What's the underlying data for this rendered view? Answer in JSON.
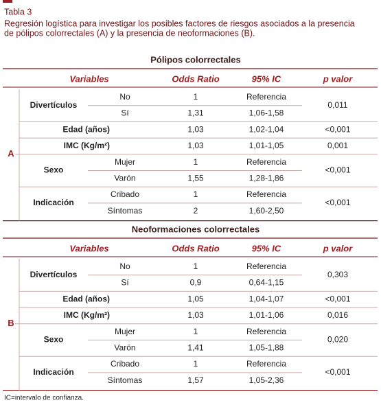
{
  "label": "Tabla 3",
  "caption_lines": [
    "Regresión logística para investigar los posibles factores de riesgos asociados a la presencia",
    "de pólipos colorrectales (A) y la presencia de neoformaciones (B)."
  ],
  "sections": [
    {
      "letter": "A",
      "title": "Pólipos colorrectales",
      "headers": [
        "Variables",
        "Odds Ratio",
        "95% IC",
        "p valor"
      ],
      "groups": [
        {
          "variable": "Divertículos",
          "rows": [
            {
              "level": "No",
              "or": "1",
              "ic": "Referencia"
            },
            {
              "level": "Sí",
              "or": "1,31",
              "ic": "1,06-1,58"
            }
          ],
          "p": "0,011"
        },
        {
          "variable": "Edad (años)",
          "rows": [
            {
              "or": "1,03",
              "ic": "1,02-1,04"
            }
          ],
          "p": "<0,001"
        },
        {
          "variable": "IMC (Kg/m²)",
          "rows": [
            {
              "or": "1,03",
              "ic": "1,01-1,05"
            }
          ],
          "p": "0,001"
        },
        {
          "variable": "Sexo",
          "rows": [
            {
              "level": "Mujer",
              "or": "1",
              "ic": "Referencia"
            },
            {
              "level": "Varón",
              "or": "1,55",
              "ic": "1,28-1,86"
            }
          ],
          "p": "<0,001"
        },
        {
          "variable": "Indicación",
          "rows": [
            {
              "level": "Cribado",
              "or": "1",
              "ic": "Referencia"
            },
            {
              "level": "Síntomas",
              "or": "2",
              "ic": "1,60-2,50"
            }
          ],
          "p": "<0,001"
        }
      ]
    },
    {
      "letter": "B",
      "title": "Neoformaciones colorrectales",
      "headers": [
        "Variables",
        "Odds Ratio",
        "95% IC",
        "p valor"
      ],
      "groups": [
        {
          "variable": "Divertículos",
          "rows": [
            {
              "level": "No",
              "or": "1",
              "ic": "Referencia"
            },
            {
              "level": "Sí",
              "or": "0,9",
              "ic": "0,64-1,15"
            }
          ],
          "p": "0,303"
        },
        {
          "variable": "Edad (años)",
          "rows": [
            {
              "or": "1,05",
              "ic": "1,04-1,07"
            }
          ],
          "p": "<0,001"
        },
        {
          "variable": "IMC (Kg/m²)",
          "rows": [
            {
              "or": "1,03",
              "ic": "1,01-1,06"
            }
          ],
          "p": "0,016"
        },
        {
          "variable": "Sexo",
          "rows": [
            {
              "level": "Mujer",
              "or": "1",
              "ic": "Referencia"
            },
            {
              "level": "Varón",
              "or": "1,41",
              "ic": "1,05-1,88"
            }
          ],
          "p": "0,020"
        },
        {
          "variable": "Indicación",
          "rows": [
            {
              "level": "Cribado",
              "or": "1",
              "ic": "Referencia"
            },
            {
              "level": "Síntomas",
              "or": "1,57",
              "ic": "1,05-2,36"
            }
          ],
          "p": "<0,001"
        }
      ]
    }
  ],
  "footnote": "IC=intervalo de confianza."
}
